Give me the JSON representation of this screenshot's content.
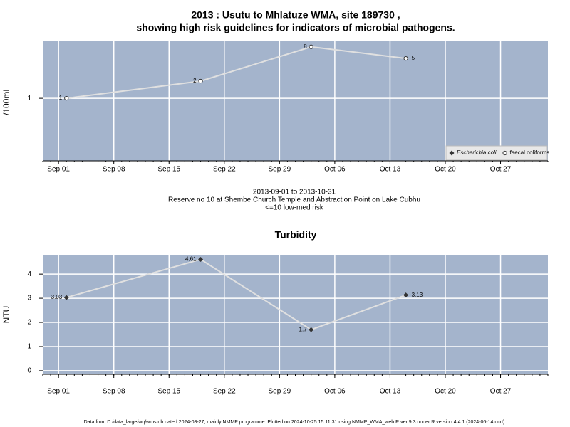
{
  "chart_data": [
    {
      "type": "line",
      "title": [
        "2013 : Usutu to Mhlatuze WMA, site 189730 ,",
        "showing high risk guidelines for indicators of microbial pathogens."
      ],
      "y_label": "/100mL",
      "annotations": [
        "2013-09-01 to 2013-10-31",
        "Reserve no 10 at Shembe Church Temple and Abstraction Point on Lake Cubhu",
        "<=10 low-med risk"
      ],
      "x": [
        "Sep 02",
        "Sep 19",
        "Oct 03",
        "Oct 15"
      ],
      "xlim": [
        "Aug 30",
        "Nov 02"
      ],
      "xticks": [
        "Sep 01",
        "Sep 08",
        "Sep 15",
        "Sep 22",
        "Sep 29",
        "Oct 06",
        "Oct 13",
        "Oct 20",
        "Oct 27"
      ],
      "ylim": [
        0.08,
        10
      ],
      "yticks": [
        1
      ],
      "log_scale": true,
      "grid": true,
      "legend": "bottom-right",
      "series": [
        {
          "name": "Escherichia coli",
          "color": "#333333",
          "marker": "diamond",
          "values": [
            null,
            null,
            null,
            null
          ]
        },
        {
          "name": "faecal coliforms",
          "color": "#333333",
          "marker": "circle",
          "values": [
            1,
            2,
            8,
            5
          ]
        }
      ]
    },
    {
      "type": "line",
      "title": [
        "Turbidity"
      ],
      "y_label": "NTU",
      "x": [
        "Sep 02",
        "Sep 19",
        "Oct 03",
        "Oct 15"
      ],
      "xlim": [
        "Aug 30",
        "Nov 02"
      ],
      "xticks": [
        "Sep 01",
        "Sep 08",
        "Sep 15",
        "Sep 22",
        "Sep 29",
        "Oct 06",
        "Oct 13",
        "Oct 20",
        "Oct 27"
      ],
      "ylim": [
        -0.15,
        4.8
      ],
      "yticks": [
        0,
        1,
        2,
        3,
        4
      ],
      "log_scale": false,
      "grid": true,
      "series": [
        {
          "color": "#333333",
          "marker": "diamond",
          "values": [
            3.03,
            4.61,
            1.7,
            3.13
          ]
        }
      ]
    }
  ],
  "footer": "Data from D:/data_large/wq/wms.db dated 2024-08-27, mainly NMMP programme. Plotted on 2024-10-25 15:11:31 using NMMP_WMA_web.R ver 9.3 under R version 4.4.1 (2024-06-14 ucrt)"
}
